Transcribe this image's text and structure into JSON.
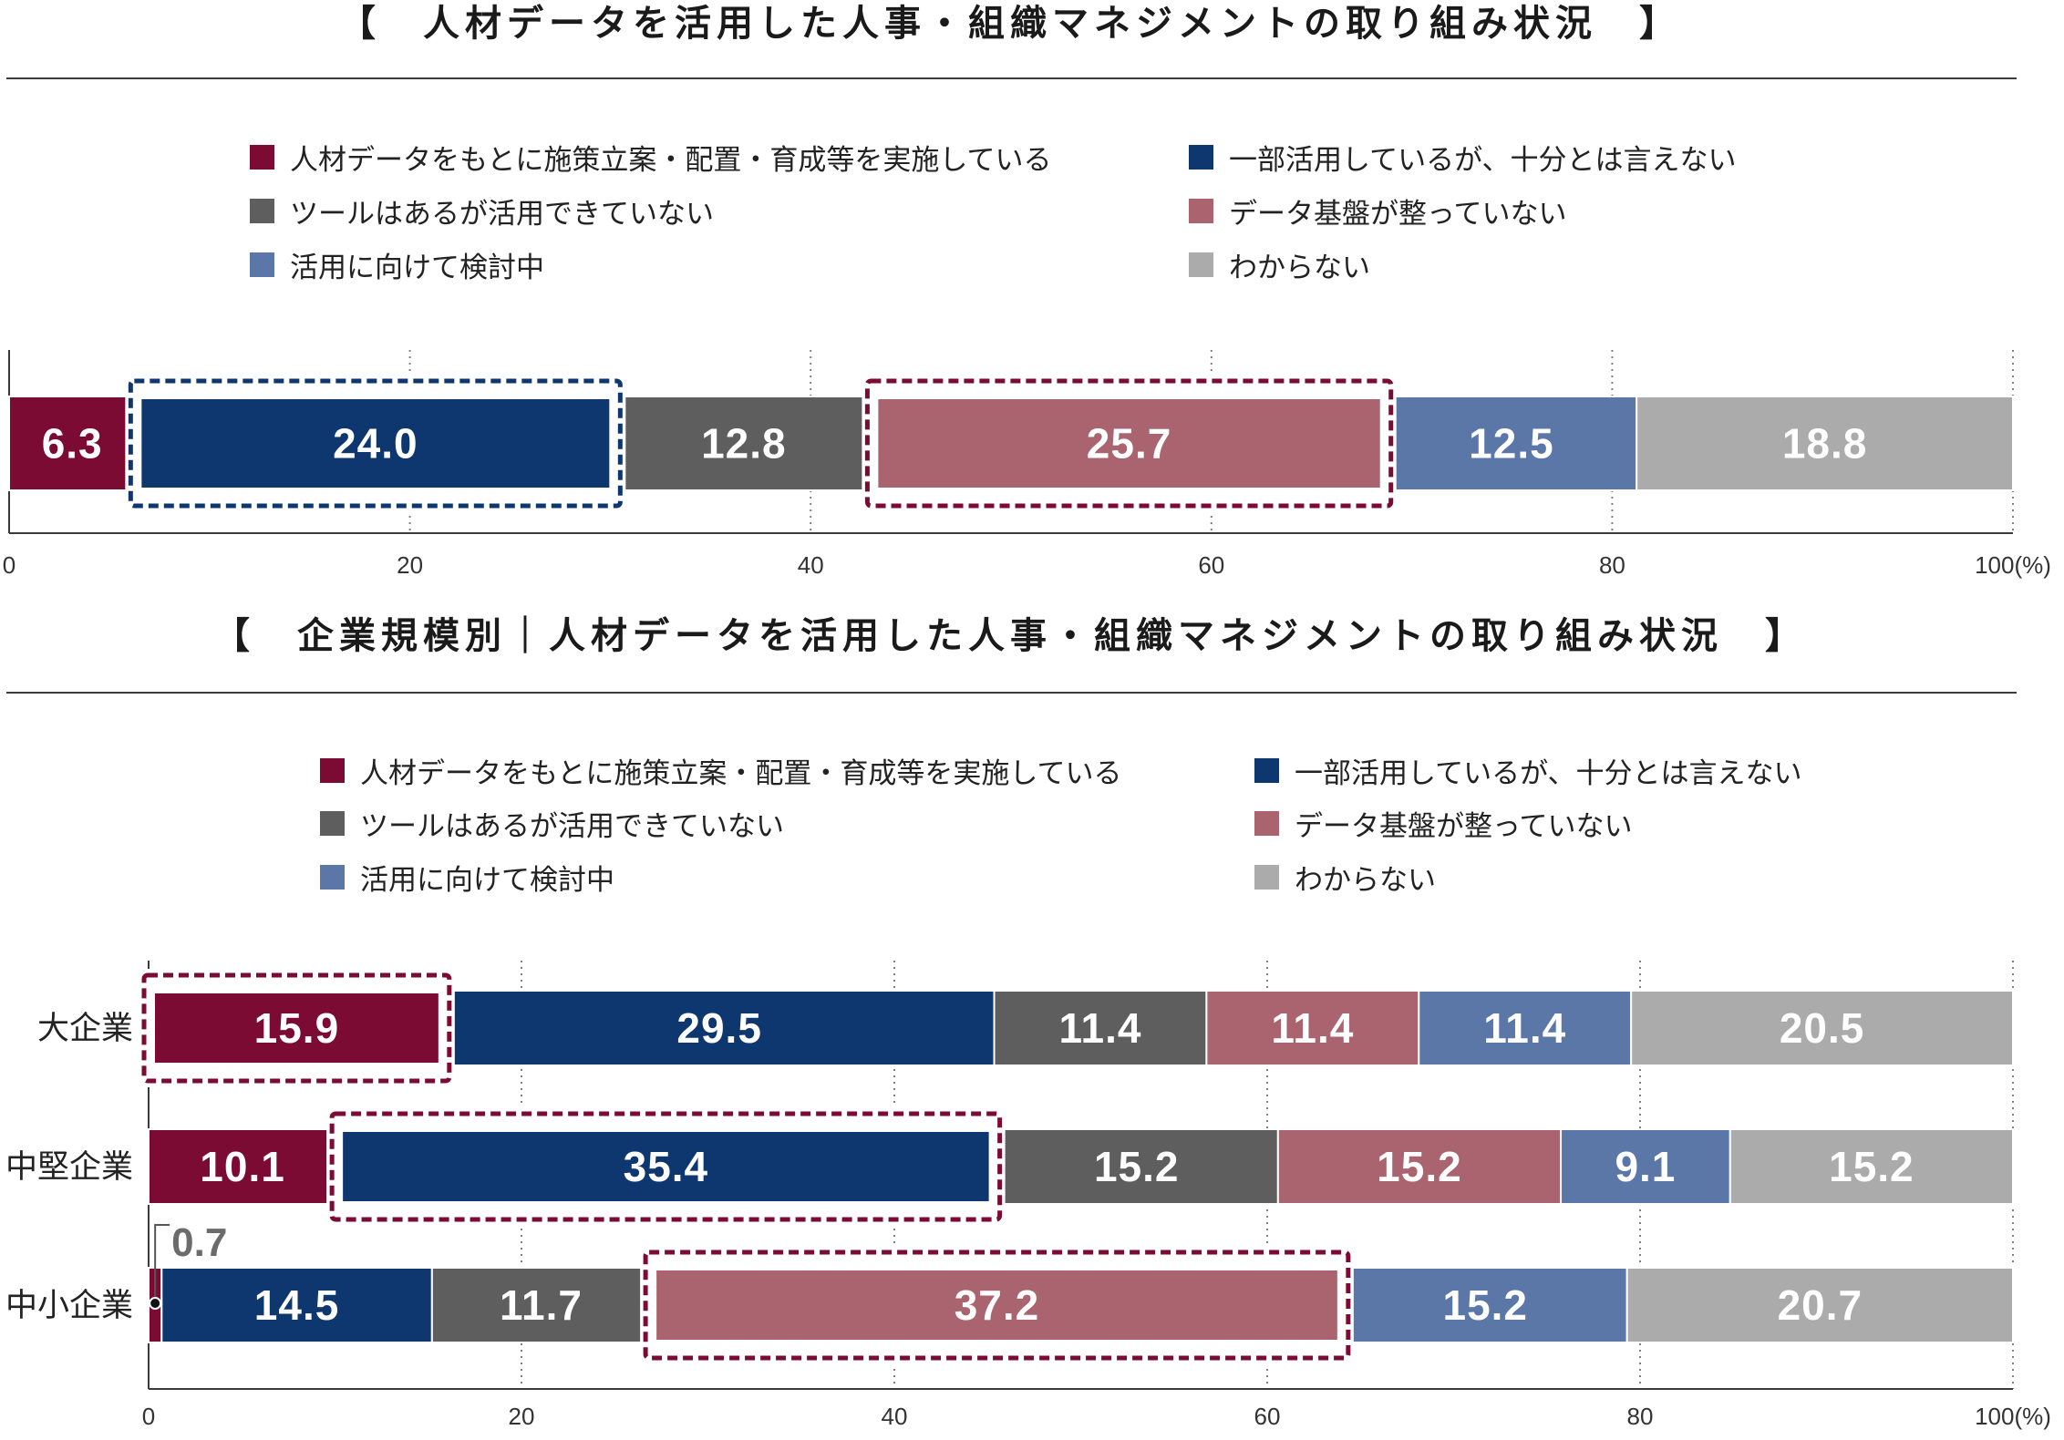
{
  "colors": {
    "background": "#FFFFFF",
    "title_text": "#1A1A1A",
    "gridline": "#808080",
    "axis": "#3A3A3A",
    "tick_text": "#333333",
    "category_text": "#222222",
    "bar_label_text": "#FFFFFF",
    "callout_text": "#6B6B6B",
    "callout_line": "#555555",
    "callout_dot": "#111111"
  },
  "chart_data": [
    {
      "type": "bar",
      "orientation": "horizontal",
      "stacked": true,
      "title": "【　人材データを活用した人事・組織マネジメントの取り組み状況　】",
      "legend_position": "top",
      "grid": true,
      "xlim": [
        0,
        100
      ],
      "xticks": [
        0,
        20,
        40,
        60,
        80,
        100
      ],
      "xtick_labels": [
        "0",
        "20",
        "40",
        "60",
        "80",
        "100"
      ],
      "x_unit": "(%)",
      "series": [
        {
          "name": "人材データをもとに施策立案・配置・育成等を実施している",
          "color": "#7C0B34",
          "values": [
            6.3
          ]
        },
        {
          "name": "一部活用しているが、十分とは言えない",
          "color": "#0F376F",
          "values": [
            24.0
          ]
        },
        {
          "name": "ツールはあるが活用できていない",
          "color": "#5E5E5E",
          "values": [
            12.8
          ]
        },
        {
          "name": "データ基盤が整っていない",
          "color": "#A9646F",
          "values": [
            25.7
          ]
        },
        {
          "name": "活用に向けて検討中",
          "color": "#5B77A8",
          "values": [
            12.5
          ]
        },
        {
          "name": "わからない",
          "color": "#ABABAB",
          "values": [
            18.8
          ]
        }
      ],
      "data_labels": [
        [
          "6.3",
          "24.0",
          "12.8",
          "25.7",
          "12.5",
          "18.8"
        ]
      ],
      "highlights": [
        {
          "category_index": 0,
          "series_index": 1,
          "color": "#0F376F"
        },
        {
          "category_index": 0,
          "series_index": 3,
          "color": "#7C0B34"
        }
      ]
    },
    {
      "type": "bar",
      "orientation": "horizontal",
      "stacked": true,
      "title": "【　企業規模別｜人材データを活用した人事・組織マネジメントの取り組み状況　】",
      "legend_position": "top",
      "grid": true,
      "xlim": [
        0,
        100
      ],
      "xticks": [
        0,
        20,
        40,
        60,
        80,
        100
      ],
      "xtick_labels": [
        "0",
        "20",
        "40",
        "60",
        "80",
        "100"
      ],
      "x_unit": "(%)",
      "categories": [
        "大企業",
        "中堅企業",
        "中小企業"
      ],
      "series": [
        {
          "name": "人材データをもとに施策立案・配置・育成等を実施している",
          "color": "#7C0B34",
          "values": [
            15.9,
            10.1,
            0.7
          ]
        },
        {
          "name": "一部活用しているが、十分とは言えない",
          "color": "#0F376F",
          "values": [
            29.5,
            35.4,
            14.5
          ]
        },
        {
          "name": "ツールはあるが活用できていない",
          "color": "#5E5E5E",
          "values": [
            11.4,
            15.2,
            11.7
          ]
        },
        {
          "name": "データ基盤が整っていない",
          "color": "#A9646F",
          "values": [
            11.4,
            15.2,
            37.2
          ]
        },
        {
          "name": "活用に向けて検討中",
          "color": "#5B77A8",
          "values": [
            11.4,
            9.1,
            15.2
          ]
        },
        {
          "name": "わからない",
          "color": "#ABABAB",
          "values": [
            20.5,
            15.2,
            20.7
          ]
        }
      ],
      "data_labels": [
        [
          "15.9",
          "29.5",
          "11.4",
          "11.4",
          "11.4",
          "20.5"
        ],
        [
          "10.1",
          "35.4",
          "15.2",
          "15.2",
          "9.1",
          "15.2"
        ],
        [
          "0.7",
          "14.5",
          "11.7",
          "37.2",
          "15.2",
          "20.7"
        ]
      ],
      "highlights": [
        {
          "category_index": 0,
          "series_index": 0,
          "color": "#7C0B34"
        },
        {
          "category_index": 1,
          "series_index": 1,
          "color": "#7C0B34"
        },
        {
          "category_index": 2,
          "series_index": 3,
          "color": "#7C0B34"
        }
      ]
    }
  ]
}
